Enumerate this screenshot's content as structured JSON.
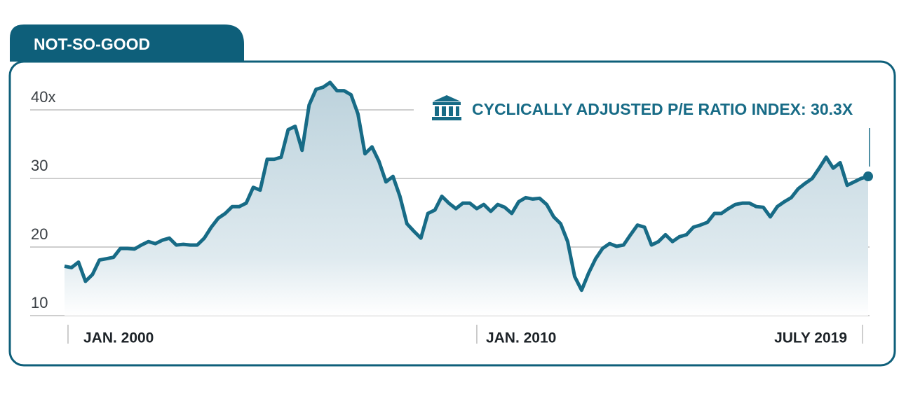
{
  "chart_data": {
    "type": "area",
    "title": "NOT-SO-GOOD",
    "annotation": "CYCLICALLY ADJUSTED P/E RATIO INDEX: 30.3X",
    "color": "#176b86",
    "values": [
      17.2,
      17.0,
      17.8,
      15.0,
      16.0,
      18.1,
      18.3,
      18.5,
      19.8,
      19.8,
      19.7,
      20.3,
      20.8,
      20.5,
      21.0,
      21.3,
      20.3,
      20.4,
      20.3,
      20.3,
      21.3,
      22.9,
      24.2,
      24.9,
      25.9,
      25.9,
      26.4,
      28.7,
      28.3,
      32.8,
      32.8,
      33.1,
      37.1,
      37.6,
      34.1,
      40.7,
      43.0,
      43.3,
      44.0,
      42.8,
      42.8,
      42.2,
      39.4,
      33.6,
      34.6,
      32.5,
      29.5,
      30.3,
      27.4,
      23.4,
      22.3,
      21.3,
      24.9,
      25.4,
      27.4,
      26.4,
      25.6,
      26.4,
      26.4,
      25.6,
      26.2,
      25.2,
      26.2,
      25.8,
      24.9,
      26.6,
      27.2,
      27.0,
      27.1,
      26.2,
      24.4,
      23.4,
      20.8,
      15.7,
      13.7,
      16.2,
      18.3,
      19.8,
      20.5,
      20.1,
      20.3,
      21.8,
      23.2,
      22.9,
      20.3,
      20.8,
      21.8,
      20.8,
      21.5,
      21.8,
      22.9,
      23.2,
      23.6,
      24.9,
      24.9,
      25.6,
      26.2,
      26.4,
      26.4,
      25.9,
      25.8,
      24.4,
      25.9,
      26.6,
      27.2,
      28.5,
      29.3,
      30.0,
      31.5,
      33.1,
      31.5,
      32.3,
      29.0,
      29.5,
      30.0,
      30.3
    ],
    "xlim": [
      0,
      115
    ],
    "xticks": [
      {
        "value": 0.5,
        "label": "JAN. 2000"
      },
      {
        "value": 59,
        "label": "JAN. 2010"
      },
      {
        "value": 114.2,
        "label": "JULY 2019"
      }
    ],
    "ylim": [
      10,
      45
    ],
    "yticks": [
      10,
      20,
      30,
      {
        "value": 40,
        "label": "40x"
      }
    ],
    "grid": true
  }
}
